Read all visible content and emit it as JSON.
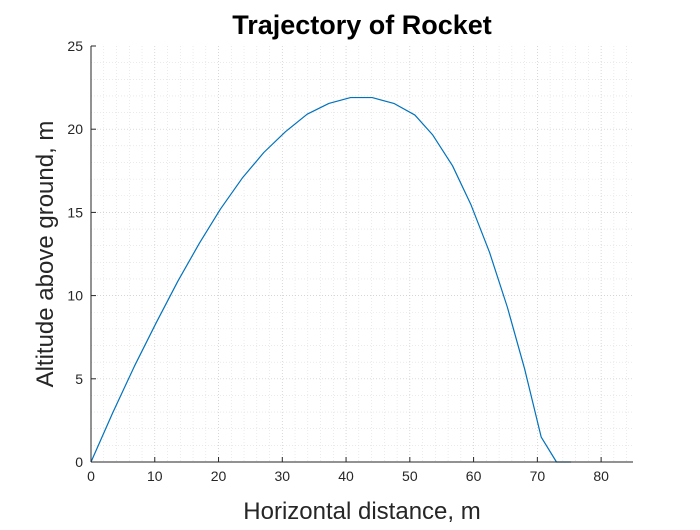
{
  "chart_data": {
    "type": "line",
    "title": "Trajectory of Rocket",
    "xlabel": "Horizontal distance, m",
    "ylabel": "Altitude above ground, m",
    "xlim": [
      0,
      85
    ],
    "ylim": [
      0,
      25
    ],
    "xticks": [
      "0",
      "10",
      "20",
      "30",
      "40",
      "50",
      "60",
      "70",
      "80"
    ],
    "yticks": [
      "0",
      "5",
      "10",
      "15",
      "20",
      "25"
    ],
    "grid": "major and minor dotted",
    "series": [
      {
        "color": "#0072BD",
        "x": [
          0,
          3.4,
          6.8,
          10.2,
          13.6,
          17.0,
          20.3,
          23.7,
          27.1,
          30.5,
          33.9,
          37.3,
          40.7,
          44.1,
          47.5,
          50.8,
          53.6,
          56.7,
          59.6,
          62.5,
          65.3,
          68.0,
          70.6,
          73.0,
          75.3
        ],
        "y": [
          0,
          2.95,
          5.75,
          8.35,
          10.85,
          13.15,
          15.2,
          17.05,
          18.6,
          19.85,
          20.9,
          21.55,
          21.9,
          21.9,
          21.55,
          20.85,
          19.65,
          17.8,
          15.45,
          12.6,
          9.3,
          5.6,
          1.5,
          -0.5,
          0
        ]
      }
    ]
  }
}
